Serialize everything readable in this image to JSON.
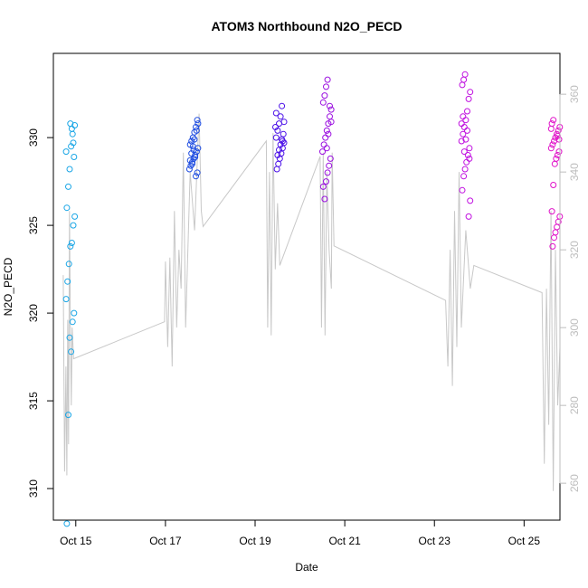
{
  "chart_data": {
    "type": "scatter",
    "title": "ATOM3 Northbound N2O_PECD",
    "xlabel": "Date",
    "ylabel": "N2O_PECD",
    "x_tick_labels": [
      "Oct 15",
      "Oct 17",
      "Oct 19",
      "Oct 21",
      "Oct 23",
      "Oct 25"
    ],
    "x_tick_days": [
      15,
      17,
      19,
      21,
      23,
      25
    ],
    "xlim": [
      14.5,
      25.8
    ],
    "ylim": [
      308.2,
      334.8
    ],
    "y_ticks": [
      310,
      315,
      320,
      325,
      330
    ],
    "y2_ticks": [
      260,
      280,
      300,
      320,
      340,
      360
    ],
    "y2lim": [
      250.5,
      370.5
    ],
    "grid": false,
    "point_series": [
      {
        "day": 14.88,
        "color": "#1AA6E6",
        "values": [
          329.2,
          328.9,
          330.2,
          329.5,
          328.2,
          327.2,
          326.0,
          325.5,
          325.0,
          324.0,
          323.8,
          322.8,
          321.8,
          320.8,
          320.0,
          319.5,
          317.8,
          318.6,
          314.2,
          308.0,
          330.7,
          329.7,
          330.5,
          330.8
        ]
      },
      {
        "day": 17.63,
        "color": "#1E4CE0",
        "values": [
          331.0,
          330.6,
          330.3,
          330.0,
          329.8,
          329.6,
          329.4,
          329.2,
          329.0,
          328.8,
          328.6,
          328.4,
          328.2,
          328.0,
          327.8,
          329.9,
          329.5,
          329.1,
          328.7,
          330.8,
          330.4,
          328.9,
          329.3,
          328.5
        ]
      },
      {
        "day": 19.55,
        "color": "#4B10E8",
        "values": [
          331.8,
          331.2,
          330.8,
          330.4,
          330.0,
          329.7,
          329.4,
          329.1,
          328.8,
          328.5,
          328.2,
          330.6,
          330.2,
          329.9,
          329.6,
          329.3,
          329.0,
          331.4,
          330.9,
          329.8
        ]
      },
      {
        "day": 20.6,
        "color": "#9B10E0",
        "values": [
          333.3,
          332.9,
          332.4,
          332.0,
          331.6,
          331.2,
          330.8,
          330.4,
          330.0,
          329.6,
          329.2,
          328.8,
          328.4,
          328.0,
          327.5,
          326.5,
          327.2,
          330.9,
          331.8,
          330.2,
          329.4
        ]
      },
      {
        "day": 23.7,
        "color": "#C010E0",
        "values": [
          333.6,
          333.3,
          333.0,
          332.6,
          332.2,
          331.5,
          331.0,
          330.6,
          330.2,
          329.8,
          329.4,
          329.0,
          328.6,
          328.2,
          327.8,
          327.0,
          326.4,
          325.5,
          330.4,
          329.9,
          329.2,
          331.2,
          330.8,
          328.8
        ]
      },
      {
        "day": 25.7,
        "color": "#E010C8",
        "values": [
          331.0,
          330.8,
          330.6,
          330.4,
          330.2,
          330.0,
          329.8,
          329.6,
          329.4,
          329.2,
          329.0,
          328.8,
          328.5,
          327.3,
          325.8,
          325.5,
          325.2,
          324.9,
          324.6,
          324.3,
          323.8,
          330.5,
          329.9,
          330.1
        ]
      }
    ],
    "line_series": {
      "color": "#c8c8c8",
      "x": [
        14.72,
        14.75,
        14.78,
        14.8,
        14.82,
        14.84,
        14.86,
        14.88,
        14.9,
        14.92,
        14.95,
        16.98,
        17.0,
        17.05,
        17.1,
        17.15,
        17.2,
        17.25,
        17.3,
        17.35,
        17.4,
        17.45,
        17.55,
        17.65,
        17.75,
        17.8,
        17.84,
        19.25,
        19.28,
        19.32,
        19.36,
        19.4,
        19.45,
        19.5,
        19.55,
        20.45,
        20.48,
        20.52,
        20.56,
        20.6,
        20.65,
        20.7,
        20.72,
        20.76,
        23.25,
        23.3,
        23.35,
        23.4,
        23.45,
        23.5,
        23.55,
        23.6,
        23.7,
        23.8,
        23.88,
        25.4,
        25.45,
        25.5,
        25.55,
        25.6,
        25.65,
        25.7,
        25.75,
        25.8
      ],
      "y": [
        313.5,
        263.0,
        290.0,
        262.0,
        302.0,
        270.0,
        330.0,
        300.0,
        280.0,
        300.0,
        292.0,
        301.5,
        317.0,
        295.0,
        318.0,
        290.0,
        330.0,
        300.0,
        320.0,
        310.0,
        345.0,
        300.0,
        340.0,
        325.0,
        355.0,
        330.0,
        326.0,
        348.0,
        300.0,
        340.0,
        298.0,
        350.0,
        315.0,
        332.0,
        316.0,
        344.0,
        300.0,
        345.0,
        298.0,
        340.0,
        320.0,
        310.0,
        345.0,
        321.0,
        307.0,
        290.0,
        320.0,
        285.0,
        330.0,
        295.0,
        340.0,
        300.0,
        325.0,
        310.0,
        316.0,
        309.0,
        265.0,
        310.0,
        275.0,
        330.0,
        258.0,
        320.0,
        280.0,
        295.0
      ]
    }
  }
}
